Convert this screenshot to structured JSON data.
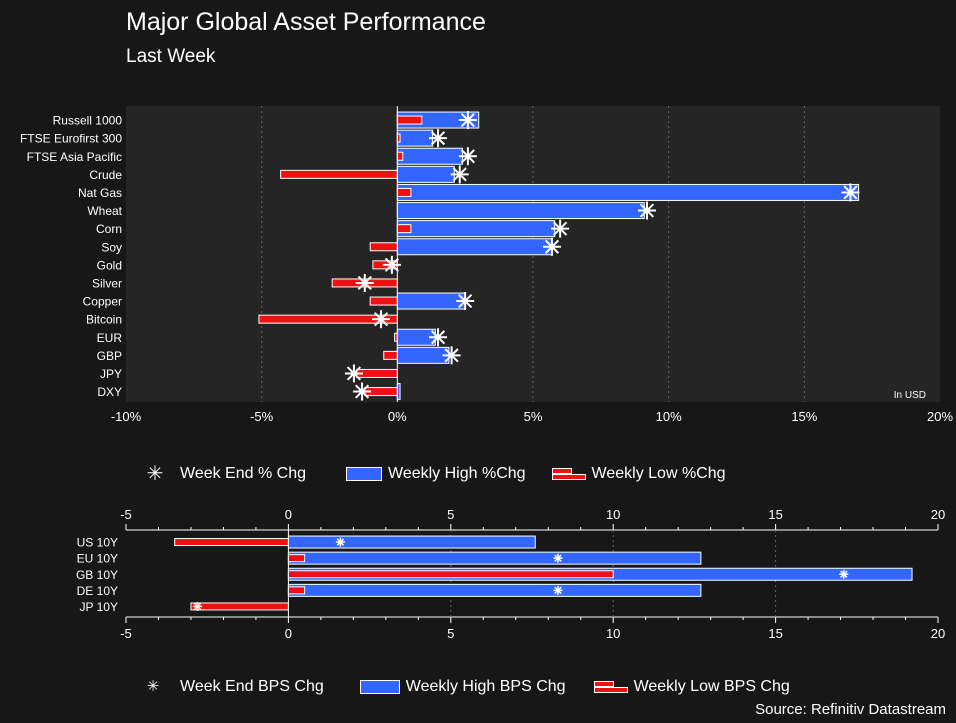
{
  "header": {
    "title": "Major Global Asset Performance",
    "subtitle": "Last Week"
  },
  "source": "Source: Refinitiv Datastream",
  "colors": {
    "background": "#171717",
    "plot_bg": "#252525",
    "high": "#3366ff",
    "low": "#ee1111",
    "marker": "#ffffff"
  },
  "chart_data": [
    {
      "type": "bar",
      "orientation": "horizontal",
      "title": "",
      "annotation": "In USD",
      "xlim": [
        -10,
        20
      ],
      "xticks": [
        "-10%",
        "-5%",
        "0%",
        "5%",
        "10%",
        "15%",
        "20%"
      ],
      "grid": true,
      "legend_placement": "bottom",
      "categories": [
        "Russell 1000",
        "FTSE Eurofirst 300",
        "FTSE Asia Pacific",
        "Crude",
        "Nat Gas",
        "Wheat",
        "Corn",
        "Soy",
        "Gold",
        "Silver",
        "Copper",
        "Bitcoin",
        "EUR",
        "GBP",
        "JPY",
        "DXY"
      ],
      "series": [
        {
          "name": "Week End % Chg",
          "marker": "star",
          "values": [
            2.6,
            1.5,
            2.6,
            2.3,
            16.7,
            9.2,
            6.0,
            5.7,
            -0.2,
            -1.2,
            2.5,
            -0.6,
            1.5,
            2.0,
            -1.6,
            -1.3
          ]
        },
        {
          "name": "Weekly High %Chg",
          "values": [
            3.0,
            1.3,
            2.4,
            2.1,
            17.0,
            9.1,
            5.8,
            5.7,
            0.0,
            0.0,
            2.5,
            0.0,
            1.4,
            1.9,
            0.0,
            0.1
          ]
        },
        {
          "name": "Weekly Low %Chg",
          "values": [
            0.9,
            0.1,
            0.2,
            -4.3,
            0.5,
            0.0,
            0.5,
            -1.0,
            -0.9,
            -2.4,
            -1.0,
            -5.1,
            -0.1,
            -0.5,
            -1.5,
            -1.2
          ]
        }
      ]
    },
    {
      "type": "bar",
      "orientation": "horizontal",
      "title": "",
      "xlim": [
        -5,
        20
      ],
      "xticks": [
        "-5",
        "0",
        "5",
        "10",
        "15",
        "20"
      ],
      "grid": true,
      "legend_placement": "bottom",
      "categories": [
        "US 10Y",
        "EU 10Y",
        "GB 10Y",
        "DE 10Y",
        "JP 10Y"
      ],
      "series": [
        {
          "name": "Week End BPS Chg",
          "marker": "star",
          "values": [
            1.6,
            8.3,
            17.1,
            8.3,
            -2.8
          ]
        },
        {
          "name": "Weekly High BPS Chg",
          "values": [
            7.6,
            12.7,
            19.2,
            12.7,
            0.0
          ]
        },
        {
          "name": "Weekly Low BPS Chg",
          "values": [
            -3.5,
            0.5,
            10.0,
            0.5,
            -3.0
          ]
        }
      ]
    }
  ],
  "legend1": {
    "star": "Week End % Chg",
    "high": "Weekly High %Chg",
    "low": "Weekly Low %Chg"
  },
  "legend2": {
    "star": "Week End BPS Chg",
    "high": "Weekly High BPS Chg",
    "low": "Weekly Low BPS Chg"
  }
}
